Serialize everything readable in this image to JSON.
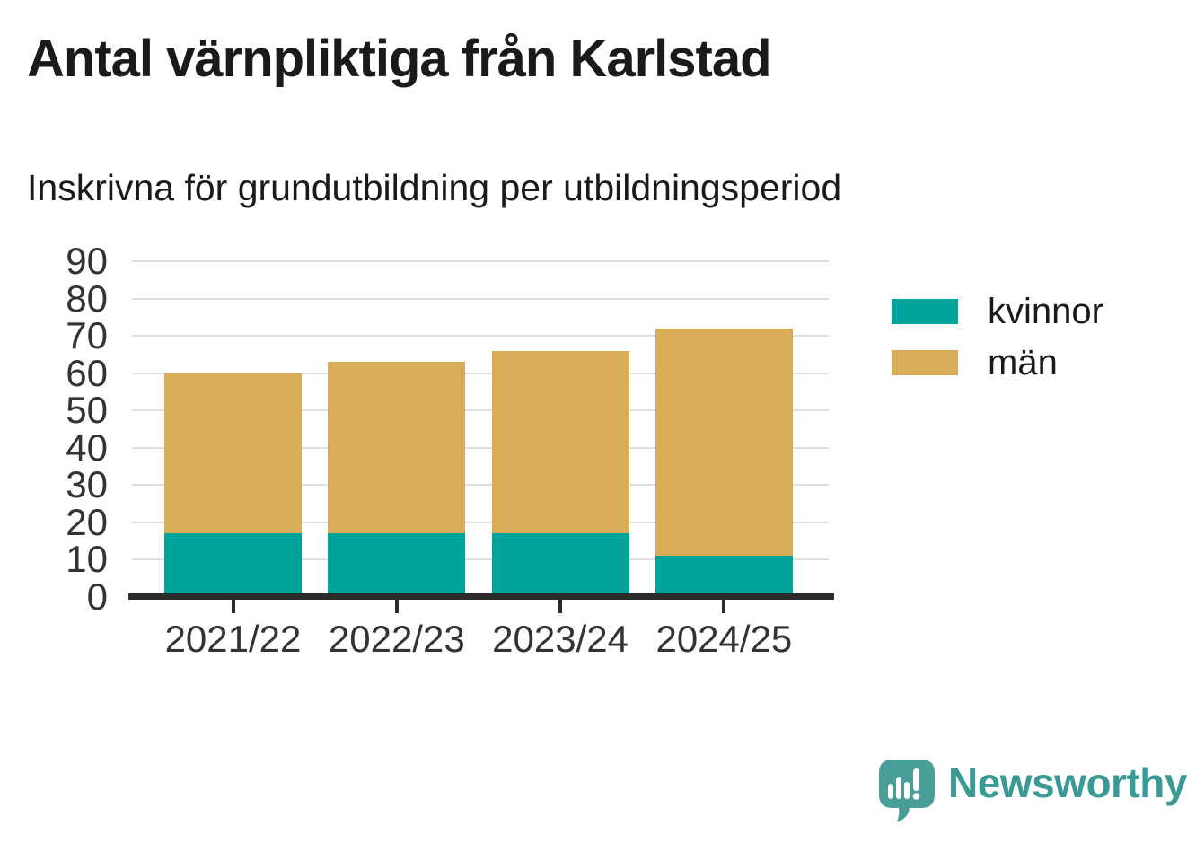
{
  "header": {
    "title": "Antal värnpliktiga från Karlstad",
    "subtitle": "Inskrivna för grundutbildning per utbildningsperiod"
  },
  "chart_data": {
    "type": "bar",
    "stacked": true,
    "title": "Antal värnpliktiga från Karlstad",
    "subtitle": "Inskrivna för grundutbildning per utbildningsperiod",
    "categories": [
      "2021/22",
      "2022/23",
      "2023/24",
      "2024/25"
    ],
    "series": [
      {
        "name": "kvinnor",
        "color": "#00a49b",
        "values": [
          17,
          17,
          17,
          11
        ]
      },
      {
        "name": "män",
        "color": "#d9ad58",
        "values": [
          43,
          46,
          49,
          61
        ]
      }
    ],
    "stack_totals": [
      60,
      63,
      66,
      72
    ],
    "xlabel": "",
    "ylabel": "",
    "ylim": [
      0,
      90
    ],
    "yticks": [
      0,
      10,
      20,
      30,
      40,
      50,
      60,
      70,
      80,
      90
    ],
    "grid": true,
    "legend_position": "right-of-plot"
  },
  "footer": {
    "brand": "Newsworthy"
  },
  "colors": {
    "title": "#1a1a1a",
    "axistext": "#333333",
    "gridline": "#dfdfdf",
    "axis": "#2b2b2b",
    "kvinnor": "#00a49b",
    "man": "#d9ad58",
    "brand": "#3b9a95",
    "brand_icon": "#4a9e99"
  }
}
